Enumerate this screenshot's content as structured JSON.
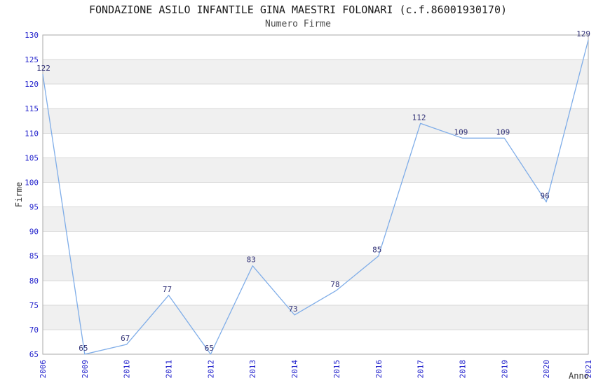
{
  "chart_data": {
    "type": "line",
    "title": "FONDAZIONE ASILO INFANTILE GINA MAESTRI FOLONARI (c.f.86001930170)",
    "subtitle": "Numero Firme",
    "xlabel": "Anno",
    "ylabel": "Firme",
    "categories": [
      "2006",
      "2009",
      "2010",
      "2011",
      "2012",
      "2013",
      "2014",
      "2015",
      "2016",
      "2017",
      "2018",
      "2019",
      "2020",
      "2021"
    ],
    "values": [
      122,
      65,
      67,
      77,
      65,
      83,
      73,
      78,
      85,
      112,
      109,
      109,
      96,
      129
    ],
    "ylim": [
      65,
      130
    ],
    "ytick_step": 5,
    "grid": true,
    "banded_background": true,
    "legend": "none",
    "colors": {
      "line": "#7fade8",
      "tick_label": "#2222cc",
      "data_label": "#333377",
      "band": "#f0f0f0",
      "grid": "#d9d9d9",
      "border": "#a8a8a8",
      "title": "#1a1a1a",
      "subtitle": "#4a4a4a",
      "axis_title": "#333333",
      "background": "#ffffff"
    }
  }
}
